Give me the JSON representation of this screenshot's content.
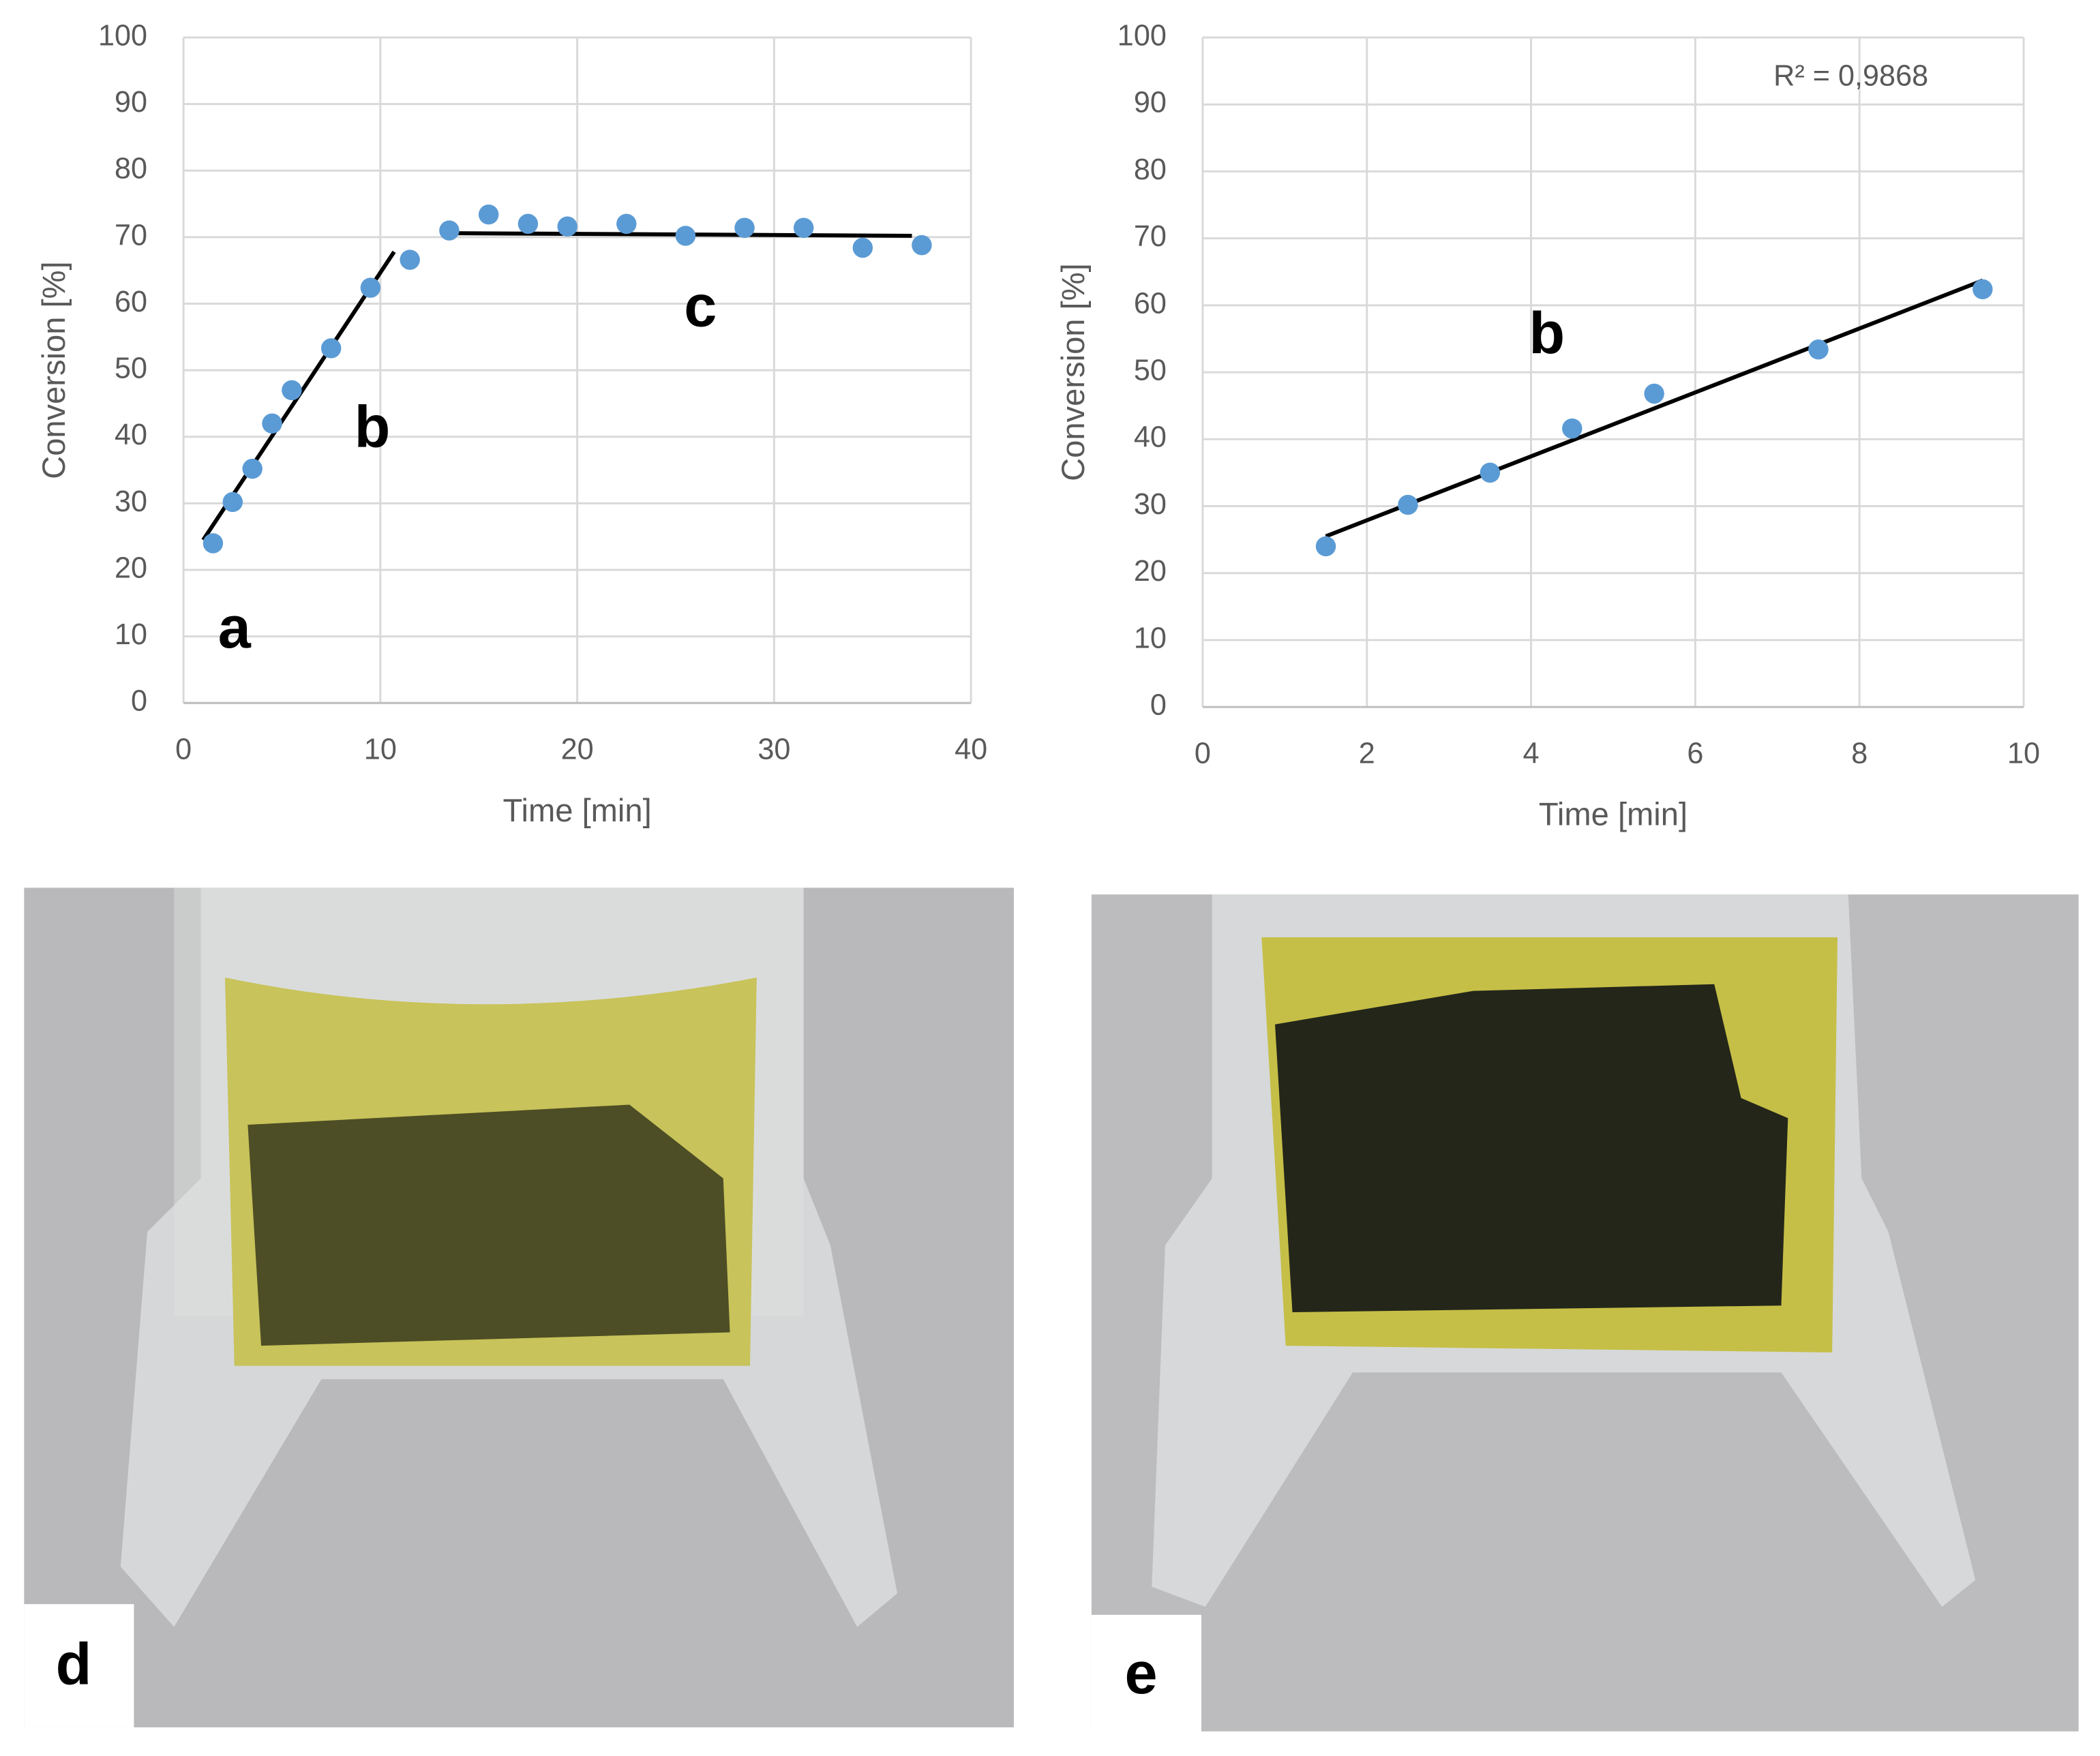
{
  "chart_data": [
    {
      "type": "scatter",
      "xlabel": "Time [min]",
      "ylabel": "Conversion [%]",
      "x": [
        1.5,
        2.5,
        3.5,
        4.5,
        5.5,
        7.5,
        9.5,
        11.5,
        13.5,
        15.5,
        17.5,
        19.5,
        22.5,
        25.5,
        28.5,
        31.5,
        34.5,
        37.5
      ],
      "values": [
        24,
        30.2,
        35.2,
        42,
        47,
        53.3,
        62.4,
        66.6,
        71,
        73.4,
        72,
        71.6,
        72,
        70.2,
        71.4,
        71.4,
        68.4,
        68.8
      ],
      "color": "#5b9bd5",
      "trendlines": [
        {
          "x": [
            1,
            10.7
          ],
          "values": [
            24.5,
            67.8
          ],
          "color": "#000000"
        },
        {
          "x": [
            13.5,
            37
          ],
          "values": [
            70.6,
            70.2
          ],
          "color": "#000000"
        }
      ],
      "annotations": [
        "a",
        "b",
        "c"
      ],
      "xlim": [
        0,
        40
      ],
      "xticks": [
        0,
        10,
        20,
        30,
        40
      ],
      "ylim": [
        0,
        100
      ],
      "yticks": [
        0,
        10,
        20,
        30,
        40,
        50,
        60,
        70,
        80,
        90,
        100
      ],
      "grid": true
    },
    {
      "type": "scatter",
      "xlabel": "Time [min]",
      "ylabel": "Conversion [%]",
      "x": [
        1.5,
        2.5,
        3.5,
        4.5,
        5.5,
        7.5,
        9.5
      ],
      "values": [
        24,
        30.2,
        35,
        41.6,
        46.8,
        53.4,
        62.4
      ],
      "color": "#5b9bd5",
      "trendlines": [
        {
          "x": [
            1.5,
            9.5
          ],
          "values": [
            25.5,
            63.7
          ],
          "color": "#000000"
        }
      ],
      "annotations": [
        "R² = 0,9868",
        "b"
      ],
      "xlim": [
        0,
        10
      ],
      "xticks": [
        0,
        2,
        4,
        6,
        8,
        10
      ],
      "ylim": [
        0,
        100
      ],
      "yticks": [
        0,
        10,
        20,
        30,
        40,
        50,
        60,
        70,
        80,
        90,
        100
      ],
      "grid": true
    }
  ],
  "photo_labels": [
    "d",
    "e"
  ]
}
